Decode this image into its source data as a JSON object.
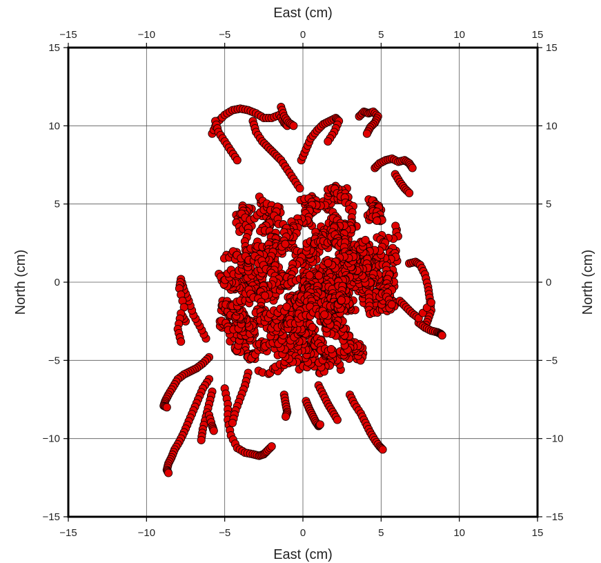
{
  "chart_data": {
    "type": "scatter",
    "title": "",
    "xlabel": "East (cm)",
    "ylabel": "North (cm)",
    "xlim": [
      -15,
      15
    ],
    "ylim": [
      -15,
      15
    ],
    "xticks": [
      -15,
      -10,
      -5,
      0,
      5,
      10,
      15
    ],
    "yticks": [
      -15,
      -10,
      -5,
      0,
      5,
      10,
      15
    ],
    "grid": true,
    "axes_mirrored": "labels on all four sides",
    "marker": "circle",
    "marker_fill": "#e00000",
    "marker_edge": "#1a0000",
    "bulk": {
      "description_of_shape": "dense random-walk cloud of points",
      "x_range": [
        -5.5,
        6.5
      ],
      "y_range": [
        -6,
        6.5
      ],
      "x_center": 0.5,
      "y_center": 0
    },
    "tracks": [
      {
        "x": [
          -5.8,
          -5.5,
          -5.0,
          -4.5,
          -4.0,
          -3.5,
          -3.0,
          -2.5,
          -2.0,
          -1.5,
          -1.2,
          -1.0
        ],
        "y": [
          9.5,
          10.2,
          10.7,
          11.0,
          11.1,
          11.0,
          10.8,
          10.5,
          10.5,
          10.7,
          10.2,
          10.0
        ]
      },
      {
        "x": [
          -5.6,
          -5.4,
          -5.0,
          -4.6,
          -4.2
        ],
        "y": [
          10.3,
          9.6,
          9.0,
          8.4,
          7.8
        ]
      },
      {
        "x": [
          -3.2,
          -3.0,
          -2.6,
          -2.2,
          -1.8,
          -1.4,
          -1.0,
          -0.6,
          -0.2
        ],
        "y": [
          10.3,
          9.6,
          9.0,
          8.6,
          8.2,
          7.8,
          7.2,
          6.6,
          6.0
        ]
      },
      {
        "x": [
          -1.4,
          -1.2,
          -0.9,
          -0.6
        ],
        "y": [
          11.2,
          10.6,
          10.2,
          10.0
        ]
      },
      {
        "x": [
          -0.1,
          0.2,
          0.5,
          0.9,
          1.3,
          1.7,
          2.1,
          2.3,
          2.0,
          1.6
        ],
        "y": [
          7.8,
          8.5,
          9.2,
          9.7,
          10.1,
          10.3,
          10.5,
          10.3,
          9.6,
          9.0
        ]
      },
      {
        "x": [
          3.6,
          3.9,
          4.2,
          4.5,
          4.8,
          4.6,
          4.3,
          4.1
        ],
        "y": [
          10.6,
          10.9,
          10.8,
          10.9,
          10.6,
          10.2,
          9.9,
          9.5
        ]
      },
      {
        "x": [
          4.6,
          4.9,
          5.3,
          5.7,
          6.1,
          6.5,
          6.8,
          7.0
        ],
        "y": [
          7.3,
          7.6,
          7.8,
          7.9,
          7.7,
          7.8,
          7.6,
          7.3
        ]
      },
      {
        "x": [
          5.9,
          6.2,
          6.5,
          6.8
        ],
        "y": [
          6.9,
          6.4,
          6.0,
          5.7
        ]
      },
      {
        "x": [
          6.8,
          7.2,
          7.5,
          7.8,
          8.0,
          8.1,
          8.2,
          8.0,
          7.8
        ],
        "y": [
          1.2,
          1.3,
          1.1,
          0.5,
          -0.3,
          -1.0,
          -1.8,
          -2.4,
          -2.9
        ]
      },
      {
        "x": [
          7.4,
          7.8,
          8.2,
          8.6,
          8.8,
          8.9
        ],
        "y": [
          -2.6,
          -2.9,
          -3.1,
          -3.2,
          -3.3,
          -3.4
        ]
      },
      {
        "x": [
          6.2,
          6.6,
          7.0,
          7.4,
          8.2
        ],
        "y": [
          -1.2,
          -1.6,
          -2.0,
          -2.3,
          -1.3
        ]
      },
      {
        "x": [
          -6.2,
          -6.6,
          -7.0,
          -7.3,
          -7.6,
          -7.8,
          -7.9,
          -7.6
        ],
        "y": [
          -3.6,
          -2.8,
          -2.1,
          -1.2,
          -0.5,
          0.2,
          -0.4,
          -1.6
        ]
      },
      {
        "x": [
          -7.5,
          -7.8,
          -8.0,
          -7.8
        ],
        "y": [
          -2.5,
          -2.0,
          -3.0,
          -3.8
        ]
      },
      {
        "x": [
          -6.0,
          -6.4,
          -6.8,
          -7.2,
          -7.6,
          -8.0,
          -8.3,
          -8.6,
          -8.8,
          -8.9,
          -8.7
        ],
        "y": [
          -4.8,
          -5.2,
          -5.5,
          -5.7,
          -5.9,
          -6.2,
          -6.7,
          -7.2,
          -7.6,
          -7.9,
          -8.0
        ]
      },
      {
        "x": [
          -6.0,
          -6.4,
          -6.7,
          -7.0,
          -7.3,
          -7.6,
          -7.9,
          -8.2,
          -8.4,
          -8.6,
          -8.7,
          -8.6
        ],
        "y": [
          -6.2,
          -6.8,
          -7.5,
          -8.2,
          -8.9,
          -9.6,
          -10.2,
          -10.7,
          -11.2,
          -11.6,
          -12.0,
          -12.2
        ]
      },
      {
        "x": [
          -5.8,
          -6.0,
          -6.2,
          -6.4,
          -6.5
        ],
        "y": [
          -7.0,
          -7.8,
          -8.6,
          -9.4,
          -10.1
        ]
      },
      {
        "x": [
          -6.0,
          -5.8,
          -5.7
        ],
        "y": [
          -8.5,
          -9.2,
          -9.5
        ]
      },
      {
        "x": [
          -5.0,
          -4.8,
          -4.8,
          -4.6,
          -4.2,
          -3.7,
          -3.2,
          -2.8,
          -2.5,
          -2.3,
          -2.0
        ],
        "y": [
          -6.8,
          -7.8,
          -8.8,
          -9.8,
          -10.6,
          -10.9,
          -11.0,
          -11.1,
          -11.0,
          -10.8,
          -10.5
        ]
      },
      {
        "x": [
          -3.5,
          -3.7,
          -4.0,
          -4.3,
          -4.5
        ],
        "y": [
          -5.8,
          -6.6,
          -7.4,
          -8.2,
          -9.0
        ]
      },
      {
        "x": [
          -1.2,
          -1.1,
          -1.0,
          -1.1
        ],
        "y": [
          -7.2,
          -7.8,
          -8.3,
          -8.6
        ]
      },
      {
        "x": [
          0.2,
          0.4,
          0.6,
          0.8,
          1.0,
          1.1
        ],
        "y": [
          -7.6,
          -8.1,
          -8.5,
          -8.9,
          -9.2,
          -9.1
        ]
      },
      {
        "x": [
          1.0,
          1.3,
          1.6,
          1.9,
          2.2
        ],
        "y": [
          -6.6,
          -7.2,
          -7.8,
          -8.3,
          -8.8
        ]
      },
      {
        "x": [
          3.0,
          3.3,
          3.7,
          4.0,
          4.3,
          4.6,
          4.9,
          5.1
        ],
        "y": [
          -7.2,
          -7.8,
          -8.4,
          -9.0,
          -9.6,
          -10.1,
          -10.5,
          -10.7
        ]
      }
    ]
  }
}
